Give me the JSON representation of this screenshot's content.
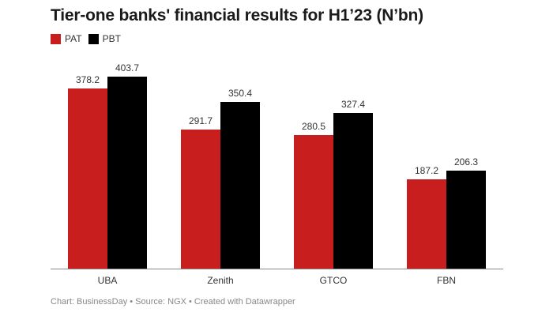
{
  "title": "Tier-one banks' financial results for H1’23 (N’bn)",
  "legend": [
    {
      "label": "PAT",
      "color": "#c81e1e"
    },
    {
      "label": "PBT",
      "color": "#000000"
    }
  ],
  "footer": "Chart: BusinessDay • Source: NGX • Created with Datawrapper",
  "chart_data": {
    "type": "bar",
    "title": "Tier-one banks' financial results for H1’23 (N’bn)",
    "categories": [
      "UBA",
      "Zenith",
      "GTCO",
      "FBN"
    ],
    "series": [
      {
        "name": "PAT",
        "color": "#c81e1e",
        "values": [
          378.2,
          291.7,
          280.5,
          187.2
        ]
      },
      {
        "name": "PBT",
        "color": "#000000",
        "values": [
          403.7,
          350.4,
          327.4,
          206.3
        ]
      }
    ],
    "value_labels": {
      "PAT": [
        "378.2",
        "291.7",
        "280.5",
        "187.2"
      ],
      "PBT": [
        "403.7",
        "350.4",
        "327.4",
        "206.3"
      ]
    },
    "xlabel": "",
    "ylabel": "",
    "ylim": [
      0,
      403.7
    ],
    "grid": false,
    "legend_position": "top-left"
  }
}
